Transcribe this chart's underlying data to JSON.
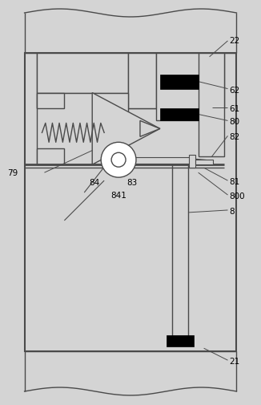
{
  "bg_color": "#d4d4d4",
  "line_color": "#4a4a4a",
  "black": "#000000",
  "white": "#ffffff",
  "figsize": [
    3.26,
    5.06
  ],
  "dpi": 100
}
